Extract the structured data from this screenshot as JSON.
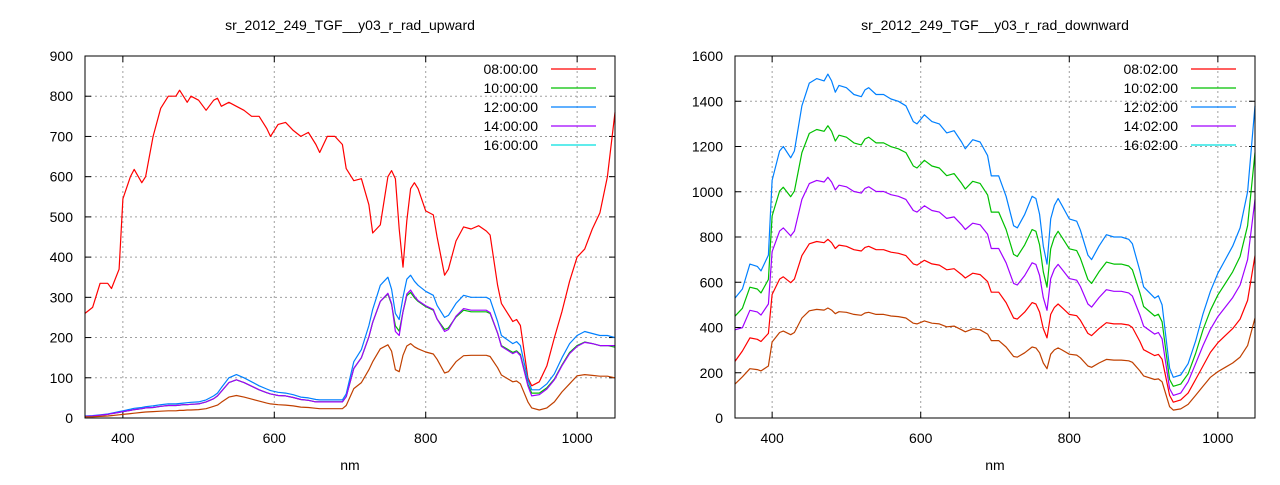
{
  "chart_data": [
    {
      "type": "line",
      "title": "sr_2012_249_TGF__y03_r_rad_upward",
      "xlabel": "nm",
      "ylabel": "",
      "xlim": [
        350,
        1050
      ],
      "ylim": [
        0,
        900
      ],
      "xticks": [
        400,
        600,
        800,
        1000
      ],
      "yticks": [
        0,
        100,
        200,
        300,
        400,
        500,
        600,
        700,
        800,
        900
      ],
      "grid": true,
      "legend_position": "top-right",
      "x": [
        350,
        360,
        370,
        380,
        385,
        395,
        400,
        410,
        415,
        425,
        430,
        440,
        450,
        460,
        470,
        475,
        480,
        485,
        490,
        500,
        510,
        520,
        525,
        530,
        540,
        550,
        560,
        570,
        580,
        590,
        595,
        605,
        615,
        625,
        635,
        645,
        655,
        660,
        670,
        680,
        690,
        695,
        705,
        715,
        725,
        730,
        740,
        750,
        755,
        760,
        765,
        770,
        775,
        780,
        785,
        790,
        800,
        810,
        815,
        825,
        830,
        840,
        850,
        860,
        870,
        880,
        885,
        895,
        900,
        915,
        920,
        925,
        935,
        940,
        950,
        960,
        970,
        980,
        990,
        1000,
        1010,
        1020,
        1030,
        1040,
        1050
      ],
      "series": [
        {
          "name": "08:00:00",
          "color": "#ff0000",
          "line_color": "#ff0000",
          "values": [
            260,
            275,
            335,
            335,
            322,
            370,
            545,
            600,
            618,
            585,
            600,
            700,
            770,
            800,
            800,
            815,
            800,
            785,
            800,
            790,
            765,
            790,
            795,
            775,
            785,
            775,
            765,
            750,
            750,
            720,
            700,
            730,
            735,
            715,
            700,
            710,
            680,
            660,
            700,
            700,
            680,
            620,
            590,
            595,
            530,
            460,
            480,
            600,
            615,
            595,
            470,
            375,
            490,
            570,
            585,
            570,
            515,
            505,
            450,
            355,
            370,
            440,
            475,
            470,
            478,
            465,
            455,
            330,
            285,
            240,
            245,
            230,
            100,
            80,
            90,
            130,
            200,
            265,
            340,
            400,
            420,
            470,
            510,
            600,
            760
          ]
        },
        {
          "name": "10:00:00",
          "color": "#00c000",
          "line_color": "#00c000",
          "values": [
            4,
            5,
            7,
            9,
            11,
            14,
            16,
            19,
            21,
            23,
            25,
            26,
            29,
            31,
            31,
            32,
            33,
            33,
            34,
            35,
            40,
            48,
            55,
            66,
            88,
            95,
            88,
            79,
            70,
            63,
            60,
            56,
            55,
            51,
            46,
            44,
            40,
            40,
            40,
            40,
            40,
            53,
            123,
            150,
            202,
            238,
            290,
            308,
            282,
            229,
            216,
            264,
            304,
            312,
            299,
            290,
            277,
            268,
            246,
            220,
            224,
            251,
            268,
            264,
            264,
            264,
            260,
            211,
            180,
            163,
            167,
            158,
            84,
            62,
            62,
            75,
            97,
            132,
            163,
            180,
            189,
            185,
            180,
            180,
            176
          ]
        },
        {
          "name": "12:00:00",
          "color": "#0080ff",
          "line_color": "#0080ff",
          "values": [
            5,
            6,
            8,
            10,
            12,
            16,
            18,
            22,
            24,
            26,
            28,
            30,
            33,
            35,
            35,
            36,
            37,
            38,
            39,
            40,
            45,
            55,
            62,
            75,
            100,
            108,
            100,
            90,
            80,
            72,
            68,
            64,
            62,
            58,
            52,
            50,
            46,
            45,
            45,
            45,
            45,
            60,
            140,
            170,
            230,
            270,
            330,
            350,
            320,
            260,
            245,
            300,
            345,
            355,
            340,
            330,
            315,
            305,
            280,
            250,
            255,
            285,
            305,
            300,
            300,
            300,
            295,
            240,
            205,
            185,
            190,
            180,
            95,
            70,
            70,
            85,
            110,
            150,
            185,
            205,
            215,
            210,
            205,
            205,
            200
          ]
        },
        {
          "name": "14:00:00",
          "color": "#a000ff",
          "line_color": "#a000ff",
          "values": [
            4,
            5,
            7,
            9,
            11,
            14,
            16,
            19,
            21,
            23,
            25,
            26,
            29,
            31,
            31,
            32,
            33,
            33,
            34,
            35,
            40,
            48,
            55,
            66,
            88,
            95,
            88,
            79,
            70,
            63,
            60,
            56,
            55,
            51,
            46,
            44,
            40,
            40,
            40,
            40,
            40,
            53,
            123,
            150,
            202,
            238,
            290,
            310,
            285,
            215,
            205,
            264,
            308,
            318,
            303,
            292,
            279,
            270,
            246,
            215,
            220,
            253,
            272,
            268,
            268,
            268,
            262,
            211,
            178,
            160,
            165,
            155,
            80,
            55,
            58,
            72,
            95,
            130,
            160,
            178,
            188,
            185,
            180,
            180,
            180
          ]
        },
        {
          "name": "16:00:00",
          "color": "#00e0e0",
          "line_color": "#c04000",
          "values": [
            3,
            3,
            4,
            5,
            6,
            8,
            9,
            11,
            12,
            14,
            15,
            16,
            17,
            18,
            18,
            19,
            19,
            20,
            20,
            21,
            23,
            29,
            32,
            39,
            52,
            56,
            52,
            47,
            42,
            37,
            35,
            33,
            32,
            30,
            27,
            26,
            24,
            23,
            23,
            23,
            23,
            31,
            73,
            88,
            120,
            140,
            172,
            182,
            166,
            120,
            115,
            156,
            179,
            185,
            177,
            172,
            164,
            159,
            146,
            112,
            115,
            140,
            155,
            156,
            156,
            156,
            153,
            125,
            107,
            90,
            92,
            85,
            40,
            25,
            20,
            25,
            40,
            65,
            85,
            105,
            108,
            106,
            104,
            104,
            100
          ]
        }
      ]
    },
    {
      "type": "line",
      "title": "sr_2012_249_TGF__y03_r_rad_downward",
      "xlabel": "nm",
      "ylabel": "",
      "xlim": [
        350,
        1050
      ],
      "ylim": [
        0,
        1600
      ],
      "xticks": [
        400,
        600,
        800,
        1000
      ],
      "yticks": [
        0,
        200,
        400,
        600,
        800,
        1000,
        1200,
        1400,
        1600
      ],
      "grid": true,
      "legend_position": "top-right",
      "x": [
        350,
        360,
        370,
        380,
        385,
        395,
        400,
        410,
        415,
        425,
        430,
        440,
        450,
        460,
        470,
        475,
        480,
        485,
        490,
        500,
        510,
        520,
        525,
        530,
        540,
        550,
        560,
        570,
        580,
        590,
        595,
        605,
        615,
        625,
        635,
        645,
        655,
        660,
        670,
        680,
        690,
        695,
        705,
        715,
        725,
        730,
        740,
        750,
        755,
        760,
        765,
        770,
        775,
        780,
        785,
        790,
        800,
        810,
        815,
        825,
        830,
        840,
        850,
        860,
        870,
        880,
        885,
        895,
        900,
        915,
        920,
        925,
        935,
        940,
        950,
        960,
        970,
        980,
        990,
        1000,
        1010,
        1020,
        1030,
        1040,
        1050
      ],
      "series": [
        {
          "name": "08:02:00",
          "color": "#ff0000",
          "line_color": "#ff0000",
          "values": [
            250,
            296,
            354,
            348,
            338,
            374,
            546,
            614,
            624,
            598,
            614,
            718,
            770,
            780,
            775,
            790,
            775,
            749,
            764,
            759,
            744,
            738,
            754,
            759,
            744,
            744,
            733,
            728,
            718,
            681,
            676,
            697,
            681,
            676,
            655,
            660,
            634,
            619,
            640,
            634,
            603,
            556,
            556,
            510,
            442,
            437,
            468,
            510,
            504,
            468,
            395,
            354,
            458,
            489,
            504,
            489,
            458,
            452,
            432,
            374,
            364,
            395,
            421,
            416,
            416,
            411,
            400,
            338,
            302,
            276,
            281,
            260,
            100,
            70,
            80,
            110,
            170,
            230,
            290,
            333,
            364,
            395,
            437,
            520,
            718
          ]
        },
        {
          "name": "10:02:00",
          "color": "#00c000",
          "line_color": "#00c000",
          "values": [
            450,
            485,
            578,
            570,
            553,
            612,
            893,
            1003,
            1020,
            978,
            1003,
            1173,
            1258,
            1275,
            1267,
            1292,
            1267,
            1224,
            1250,
            1241,
            1216,
            1207,
            1233,
            1241,
            1216,
            1216,
            1199,
            1190,
            1173,
            1114,
            1105,
            1139,
            1114,
            1105,
            1071,
            1080,
            1037,
            1012,
            1046,
            1037,
            986,
            910,
            910,
            833,
            723,
            714,
            765,
            833,
            825,
            765,
            646,
            578,
            748,
            799,
            825,
            799,
            748,
            740,
            706,
            612,
            595,
            646,
            689,
            680,
            680,
            672,
            655,
            553,
            493,
            451,
            459,
            425,
            170,
            140,
            150,
            195,
            285,
            390,
            476,
            544,
            595,
            646,
            714,
            850,
            1173
          ]
        },
        {
          "name": "12:02:00",
          "color": "#0080ff",
          "line_color": "#0080ff",
          "values": [
            530,
            570,
            680,
            670,
            650,
            720,
            1050,
            1180,
            1200,
            1150,
            1180,
            1380,
            1480,
            1500,
            1490,
            1520,
            1490,
            1440,
            1470,
            1460,
            1430,
            1420,
            1450,
            1460,
            1430,
            1430,
            1410,
            1400,
            1380,
            1310,
            1300,
            1340,
            1310,
            1300,
            1260,
            1270,
            1220,
            1190,
            1230,
            1220,
            1160,
            1070,
            1070,
            980,
            850,
            840,
            900,
            980,
            970,
            900,
            760,
            680,
            880,
            940,
            970,
            940,
            880,
            870,
            830,
            720,
            700,
            760,
            810,
            800,
            800,
            790,
            770,
            650,
            580,
            530,
            540,
            500,
            220,
            180,
            190,
            240,
            340,
            460,
            560,
            640,
            700,
            760,
            840,
            1000,
            1380
          ]
        },
        {
          "name": "14:02:00",
          "color": "#a000ff",
          "line_color": "#a000ff",
          "values": [
            390,
            399,
            476,
            469,
            455,
            504,
            735,
            826,
            840,
            805,
            826,
            966,
            1036,
            1050,
            1043,
            1064,
            1043,
            1008,
            1029,
            1022,
            1001,
            994,
            1015,
            1022,
            1001,
            1001,
            987,
            980,
            966,
            917,
            910,
            938,
            917,
            910,
            882,
            889,
            854,
            833,
            861,
            854,
            812,
            749,
            749,
            686,
            595,
            588,
            630,
            686,
            679,
            630,
            532,
            476,
            616,
            658,
            679,
            658,
            616,
            609,
            581,
            504,
            490,
            532,
            567,
            560,
            560,
            553,
            539,
            455,
            406,
            371,
            378,
            350,
            130,
            100,
            110,
            160,
            240,
            320,
            392,
            448,
            490,
            532,
            588,
            700,
            966
          ]
        },
        {
          "name": "16:02:00",
          "color": "#00e0e0",
          "line_color": "#c04000",
          "values": [
            150,
            182,
            218,
            214,
            208,
            230,
            336,
            378,
            384,
            368,
            378,
            442,
            474,
            480,
            477,
            486,
            477,
            461,
            470,
            467,
            458,
            454,
            464,
            467,
            458,
            458,
            451,
            448,
            442,
            419,
            416,
            429,
            419,
            416,
            403,
            406,
            390,
            381,
            394,
            390,
            371,
            342,
            342,
            314,
            272,
            269,
            288,
            314,
            310,
            288,
            243,
            218,
            282,
            301,
            310,
            301,
            282,
            278,
            266,
            230,
            224,
            243,
            259,
            256,
            256,
            253,
            246,
            208,
            186,
            170,
            173,
            160,
            50,
            35,
            40,
            60,
            100,
            140,
            180,
            205,
            224,
            243,
            269,
            320,
            442
          ]
        }
      ]
    }
  ]
}
